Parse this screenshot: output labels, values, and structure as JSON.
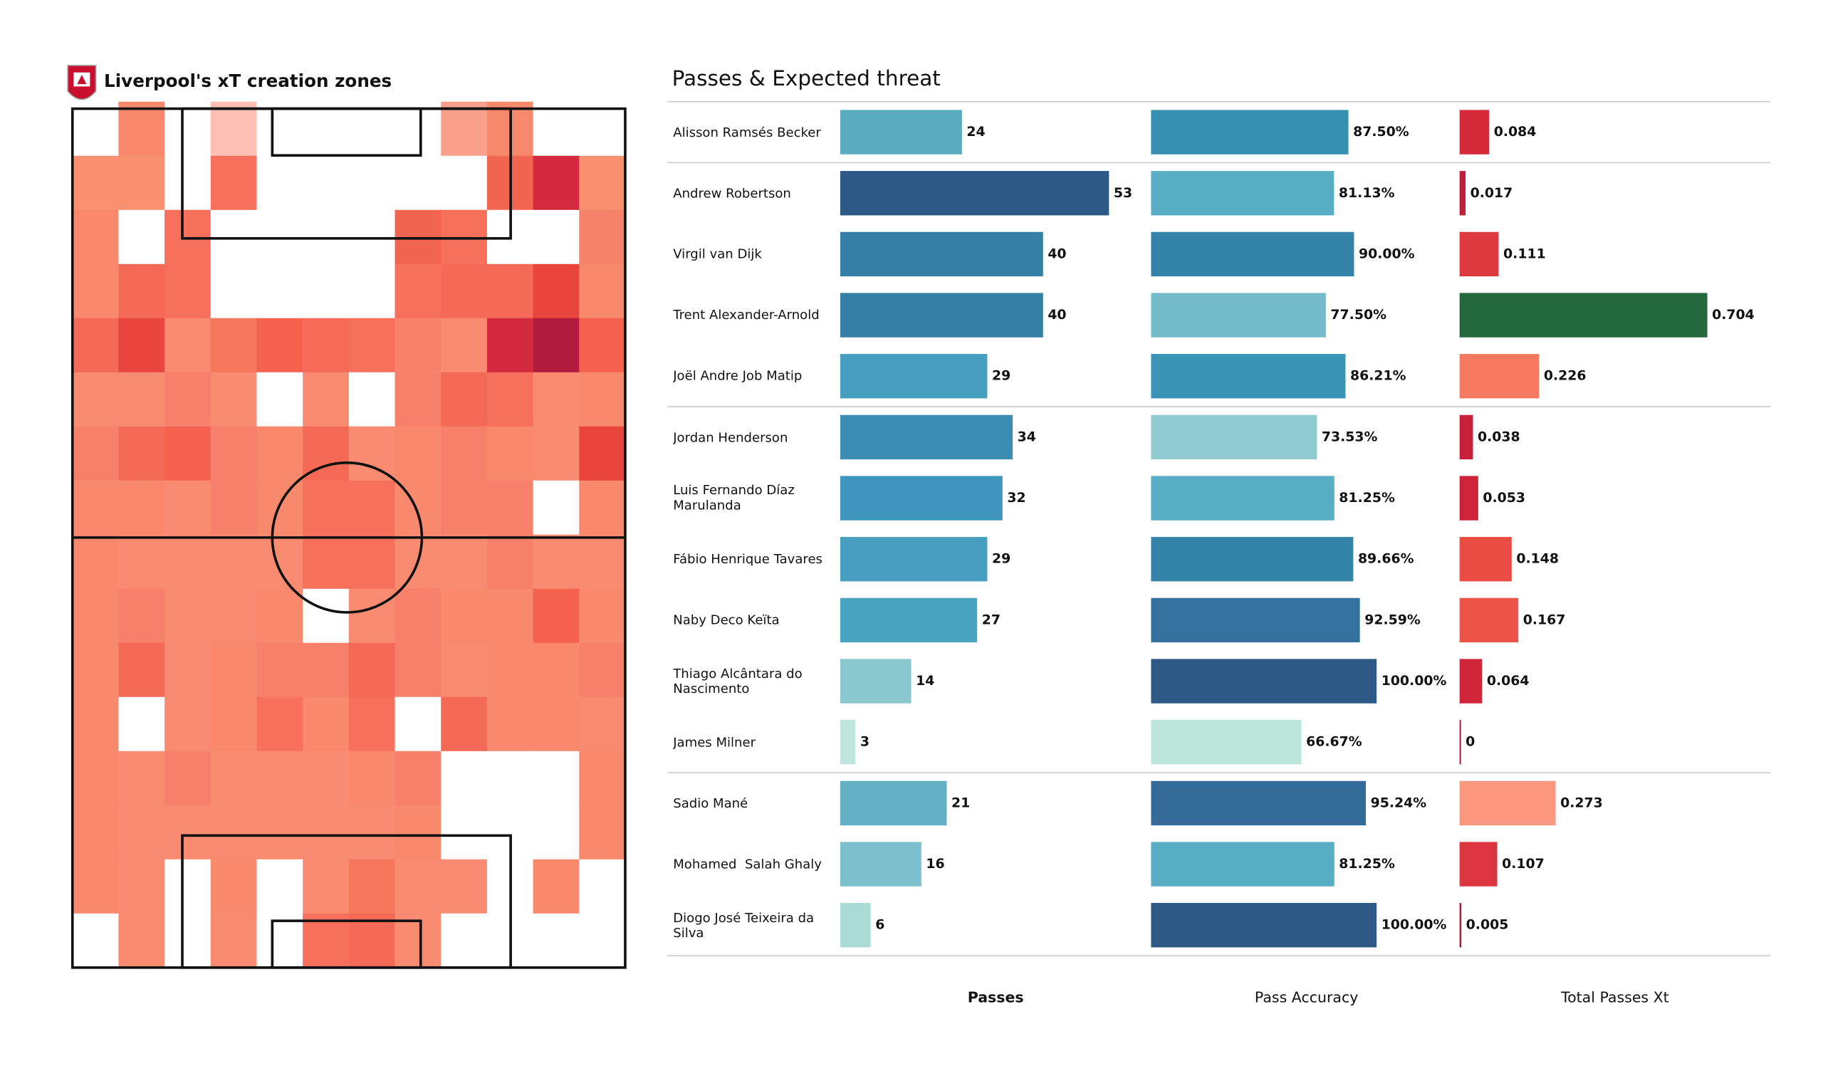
{
  "chart_data": [
    {
      "type": "heatmap",
      "title": "Liverpool's xT creation zones",
      "cells": [
        [
          "#ffffff",
          "#f8896d",
          "#ffffff",
          "#fdbfb3",
          "#ffffff",
          "#ffffff",
          "#ffffff",
          "#ffffff",
          "#f9a18a",
          "#f78a6c",
          "#ffffff",
          "#ffffff"
        ],
        [
          "#f9906f",
          "#f9906f",
          "#ffffff",
          "#f6705b",
          "#ffffff",
          "#ffffff",
          "#ffffff",
          "#ffffff",
          "#ffffff",
          "#f26550",
          "#d42a3f",
          "#f9906f"
        ],
        [
          "#f8896d",
          "#ffffff",
          "#f6705b",
          "#ffffff",
          "#ffffff",
          "#ffffff",
          "#ffffff",
          "#f26550",
          "#f6705b",
          "#ffffff",
          "#ffffff",
          "#f7826a"
        ],
        [
          "#f8896d",
          "#f46a56",
          "#f6705b",
          "#ffffff",
          "#ffffff",
          "#ffffff",
          "#ffffff",
          "#f6705b",
          "#f46a56",
          "#f46a56",
          "#e8453c",
          "#f8896d"
        ],
        [
          "#f46a56",
          "#e8453c",
          "#f98c70",
          "#f6765e",
          "#f4614f",
          "#f56b58",
          "#f6705b",
          "#f8826a",
          "#f98c70",
          "#d42a3f",
          "#b11b3d",
          "#f4614f"
        ],
        [
          "#f98c70",
          "#f98c70",
          "#f7806a",
          "#f98c70",
          "#ffffff",
          "#f98c70",
          "#ffffff",
          "#f7806a",
          "#f46a56",
          "#f6705b",
          "#f98c70",
          "#f8896d"
        ],
        [
          "#f7806a",
          "#f46a56",
          "#f4614f",
          "#f7806a",
          "#f8896d",
          "#f46a56",
          "#f98c70",
          "#f8896d",
          "#f7806a",
          "#f8896d",
          "#f98c70",
          "#e8453c"
        ],
        [
          "#f8896d",
          "#f8896d",
          "#f98c70",
          "#f7806a",
          "#f8896d",
          "#f6705b",
          "#f6705b",
          "#f8896d",
          "#f7806a",
          "#f7806a",
          "#ffffff",
          "#f8896d"
        ],
        [
          "#f8896d",
          "#f98c70",
          "#f98c70",
          "#f98c70",
          "#f98c70",
          "#f6705b",
          "#f6705b",
          "#f98c70",
          "#f98c70",
          "#f7806a",
          "#f98c70",
          "#f98c70"
        ],
        [
          "#f8896d",
          "#f7806a",
          "#f98c70",
          "#f98c70",
          "#f8896d",
          "#ffffff",
          "#f98c70",
          "#f7806a",
          "#f8896d",
          "#f8896d",
          "#f4614f",
          "#f8896d"
        ],
        [
          "#f8896d",
          "#f46a56",
          "#f98c70",
          "#f8896d",
          "#f7806a",
          "#f7806a",
          "#f46a56",
          "#f7806a",
          "#f98c70",
          "#f8896d",
          "#f8896d",
          "#f7806a"
        ],
        [
          "#f8896d",
          "#ffffff",
          "#f98c70",
          "#f8896d",
          "#f6705b",
          "#f8896d",
          "#f6705b",
          "#ffffff",
          "#f46a56",
          "#f8896d",
          "#f8896d",
          "#f98c70"
        ],
        [
          "#f8896d",
          "#f98c70",
          "#f7806a",
          "#f98c70",
          "#f98c70",
          "#f98c70",
          "#f8896d",
          "#f7806a",
          "#ffffff",
          "#ffffff",
          "#ffffff",
          "#f8896d"
        ],
        [
          "#f8896d",
          "#f98c70",
          "#f98c70",
          "#f98c70",
          "#f98c70",
          "#f98c70",
          "#f98c70",
          "#f8896d",
          "#ffffff",
          "#ffffff",
          "#ffffff",
          "#f8896d"
        ],
        [
          "#f8896d",
          "#f98c70",
          "#ffffff",
          "#f8896d",
          "#ffffff",
          "#f98c70",
          "#f6765e",
          "#f98c70",
          "#f98c70",
          "#ffffff",
          "#f8896d",
          "#ffffff"
        ],
        [
          "#ffffff",
          "#f98c70",
          "#ffffff",
          "#f98c70",
          "#ffffff",
          "#f6705b",
          "#f46a56",
          "#f98c70",
          "#ffffff",
          "#ffffff",
          "#ffffff",
          "#ffffff"
        ]
      ]
    },
    {
      "type": "bar-table",
      "title": "Passes & Expected threat",
      "categories": [
        "Alisson Ramsés Becker",
        "Andrew Robertson",
        "Virgil van Dijk",
        "Trent Alexander-Arnold",
        "Joël Andre Job Matip",
        "Jordan Henderson",
        "Luis Fernando Díaz Marulanda",
        "Fábio Henrique Tavares",
        "Naby Deco Keïta",
        "Thiago Alcântara do Nascimento",
        "James Milner",
        "Sadio Mané",
        "Mohamed  Salah Ghaly",
        "Diogo José Teixeira da Silva"
      ],
      "series": [
        {
          "name": "Passes",
          "xlim": [
            0,
            53
          ],
          "values": [
            24,
            53,
            40,
            40,
            29,
            34,
            32,
            29,
            27,
            14,
            3,
            21,
            16,
            6
          ],
          "colors": [
            "#5aabc0",
            "#2c5985",
            "#347fa6",
            "#347fa6",
            "#479fbf",
            "#3a8cb3",
            "#3f96bd",
            "#479fbf",
            "#4aa5c2",
            "#8ac8d0",
            "#bfe6dc",
            "#63b0c5",
            "#7bc0cc",
            "#a9dad3"
          ]
        },
        {
          "name": "Pass Accuracy",
          "xlim": [
            0,
            100
          ],
          "values": [
            87.5,
            81.13,
            90,
            77.5,
            86.21,
            73.53,
            81.25,
            89.66,
            92.59,
            100,
            66.67,
            95.24,
            81.25,
            100
          ],
          "value_labels": [
            "87.50%",
            "81.13%",
            "90.00%",
            "77.50%",
            "86.21%",
            "73.53%",
            "81.25%",
            "89.66%",
            "92.59%",
            "100.00%",
            "66.67%",
            "95.24%",
            "81.25%",
            "100.00%"
          ],
          "colors": [
            "#348fb0",
            "#57adc3",
            "#3384a8",
            "#74bcc9",
            "#3a94b5",
            "#91cbd2",
            "#57adc3",
            "#3384a8",
            "#33729e",
            "#2c5985",
            "#bde6da",
            "#356b99",
            "#57adc3",
            "#2c5985"
          ]
        },
        {
          "name": "Total Passes Xt",
          "xlim": [
            0,
            0.704
          ],
          "values": [
            0.084,
            0.017,
            0.111,
            0.704,
            0.226,
            0.038,
            0.053,
            0.148,
            0.167,
            0.064,
            0,
            0.273,
            0.107,
            0.005
          ],
          "colors": [
            "#d42a3a",
            "#be1e3c",
            "#dd3a40",
            "#23673d",
            "#f67b62",
            "#c81f3b",
            "#ce243b",
            "#ea4c44",
            "#ec5447",
            "#d12639",
            "#b3163a",
            "#fa977c",
            "#db363f",
            "#b3163a"
          ]
        }
      ]
    }
  ]
}
